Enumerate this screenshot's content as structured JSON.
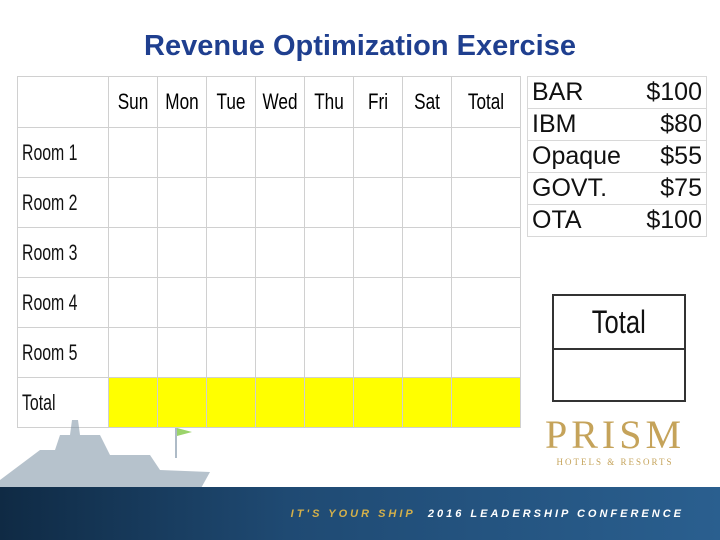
{
  "title": "Revenue Optimization Exercise",
  "grid": {
    "columns": [
      "Sun",
      "Mon",
      "Tue",
      "Wed",
      "Thu",
      "Fri",
      "Sat",
      "Total"
    ],
    "rows": [
      "Room 1",
      "Room 2",
      "Room 3",
      "Room 4",
      "Room 5",
      "Total"
    ],
    "total_row_color": "#ffff00"
  },
  "rates": [
    {
      "name": "BAR",
      "price": "$100"
    },
    {
      "name": "IBM",
      "price": "$80"
    },
    {
      "name": "Opaque",
      "price": "$55"
    },
    {
      "name": "GOVT.",
      "price": "$75"
    },
    {
      "name": "OTA",
      "price": "$100"
    }
  ],
  "total_box": {
    "label": "Total"
  },
  "logo": {
    "word": "PRISM",
    "sub": "HOTELS & RESORTS",
    "color": "#c5a35a"
  },
  "footer": {
    "tag_a": "IT'S YOUR SHIP",
    "tag_b": "2016 LEADERSHIP CONFERENCE",
    "bg": "#1f4a73"
  },
  "icons": {
    "ship": "ship-icon"
  }
}
